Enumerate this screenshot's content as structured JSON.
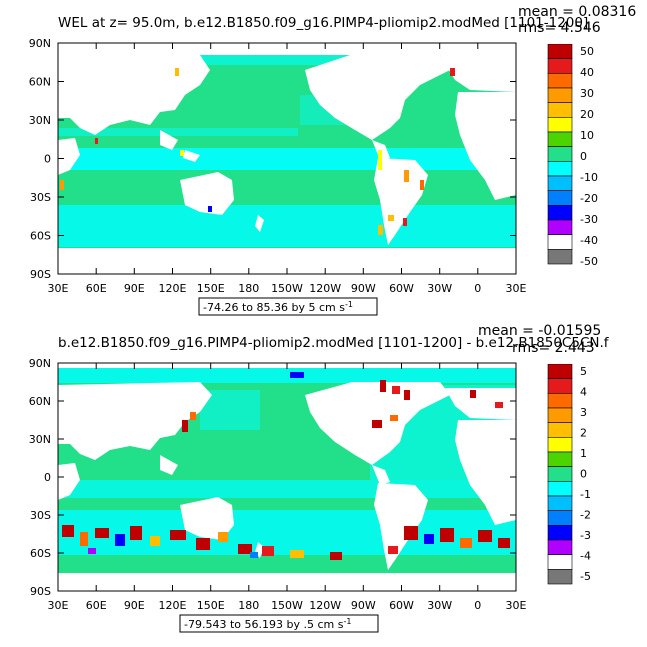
{
  "panels": [
    {
      "id": "top",
      "title": "WEL at z=  95.0m, b.e12.B1850.f09_g16.PIMP4-pliomip2.modMed [1101-1200]",
      "mean_label": "mean = 0.08316",
      "rms_label": "rms= 4.546",
      "range_label": "-74.26 to 85.36 by 5 cm s",
      "range_unit_sup": "-1",
      "lat_labels": [
        "90N",
        "60N",
        "30N",
        "0",
        "30S",
        "60S",
        "90S"
      ],
      "lon_labels": [
        "30E",
        "60E",
        "90E",
        "120E",
        "150E",
        "180",
        "150W",
        "120W",
        "90W",
        "60W",
        "30W",
        "0",
        "30E"
      ],
      "colorbar_labels": [
        "50",
        "40",
        "30",
        "20",
        "10",
        "0",
        "-10",
        "-20",
        "-30",
        "-40",
        "-50"
      ]
    },
    {
      "id": "bottom",
      "title": "b.e12.B1850.f09_g16.PIMP4-pliomip2.modMed [1101-1200] - b.e12.B1850C5CN.f",
      "mean_label": "mean = -0.01595",
      "rms_label": "rms= 2.443",
      "range_label": "-79.543 to 56.193 by .5 cm s",
      "range_unit_sup": "-1",
      "lat_labels": [
        "90N",
        "60N",
        "30N",
        "0",
        "30S",
        "60S",
        "90S"
      ],
      "lon_labels": [
        "30E",
        "60E",
        "90E",
        "120E",
        "150E",
        "180",
        "150W",
        "120W",
        "90W",
        "60W",
        "30W",
        "0",
        "30E"
      ],
      "colorbar_labels": [
        "5",
        "4",
        "3",
        "2",
        "1",
        "0",
        "-1",
        "-2",
        "-3",
        "-4",
        "-5"
      ]
    }
  ],
  "colors": {
    "palette": [
      "#bf0000",
      "#e41a1c",
      "#ff6a00",
      "#ff9a00",
      "#ffbf00",
      "#ffff00",
      "#4cd400",
      "#22e08a",
      "#00ffff",
      "#00bfff",
      "#0080ff",
      "#0000ff",
      "#b000ff",
      "#ffffff",
      "#777777"
    ],
    "ocean": "#22e08a",
    "cyan": "#00ffff",
    "land": "#ffffff"
  }
}
